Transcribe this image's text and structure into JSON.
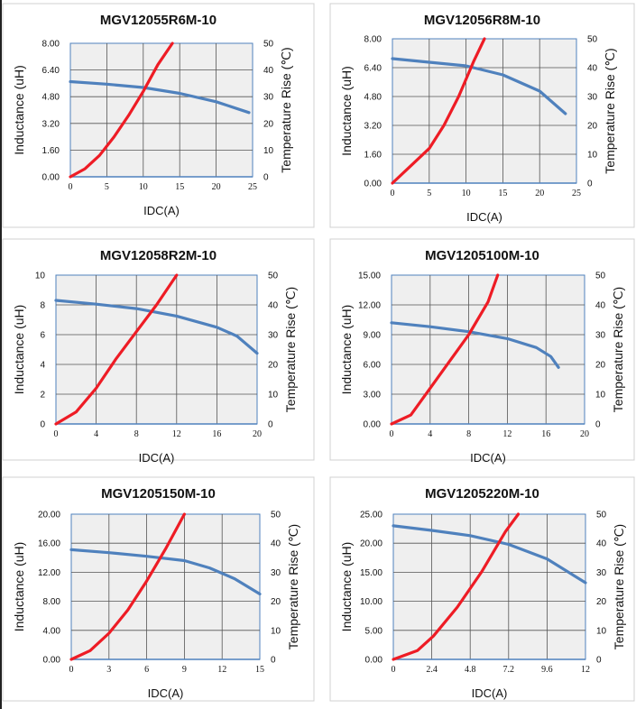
{
  "chart_data": [
    {
      "type": "line",
      "title": "MGV12055R6M-10",
      "xlabel": "IDC(A)",
      "ylabel": "Inductance (uH)",
      "y2label": "Temperature Rise (℃)",
      "xlim": [
        0,
        25
      ],
      "ylim": [
        0,
        8
      ],
      "y2lim": [
        0,
        50
      ],
      "xticks": [
        "0",
        "5",
        "10",
        "15",
        "20",
        "25"
      ],
      "yticks": [
        "0.00",
        "1.60",
        "3.20",
        "4.80",
        "6.40",
        "8.00"
      ],
      "y2ticks": [
        "0",
        "10",
        "20",
        "30",
        "40",
        "50"
      ],
      "grid": true,
      "series": [
        {
          "name": "Inductance",
          "axis": "left",
          "color": "#4f81bd",
          "x": [
            0,
            5,
            10,
            15,
            20,
            24.5
          ],
          "y": [
            5.7,
            5.55,
            5.35,
            5.0,
            4.5,
            3.85
          ]
        },
        {
          "name": "Temperature Rise",
          "axis": "right",
          "color": "#ee1c25",
          "x": [
            0,
            2,
            4,
            6,
            8,
            10,
            12,
            14
          ],
          "y": [
            0,
            3,
            8,
            15,
            23,
            32,
            42,
            50
          ]
        }
      ]
    },
    {
      "type": "line",
      "title": "MGV12056R8M-10",
      "xlabel": "IDC(A)",
      "ylabel": "Inductance (uH)",
      "y2label": "Temperature Rise (℃)",
      "xlim": [
        0,
        25
      ],
      "ylim": [
        0,
        8
      ],
      "y2lim": [
        0,
        50
      ],
      "xticks": [
        "0",
        "5",
        "10",
        "15",
        "20",
        "25"
      ],
      "yticks": [
        "0.00",
        "1.60",
        "3.20",
        "4.80",
        "6.40",
        "8.00"
      ],
      "y2ticks": [
        "0",
        "10",
        "20",
        "30",
        "40",
        "50"
      ],
      "grid": true,
      "series": [
        {
          "name": "Inductance",
          "axis": "left",
          "color": "#4f81bd",
          "x": [
            0,
            5,
            10,
            15,
            20,
            23.5
          ],
          "y": [
            6.9,
            6.7,
            6.5,
            6.0,
            5.1,
            3.85
          ]
        },
        {
          "name": "Temperature Rise",
          "axis": "right",
          "color": "#ee1c25",
          "x": [
            0,
            2.5,
            5,
            7,
            9,
            11,
            12.5
          ],
          "y": [
            0,
            6,
            12,
            20,
            30,
            42,
            50
          ]
        }
      ]
    },
    {
      "type": "line",
      "title": "MGV12058R2M-10",
      "xlabel": "IDC(A)",
      "ylabel": "Inductance (uH)",
      "y2label": "Temperature Rise (℃)",
      "xlim": [
        0,
        20
      ],
      "ylim": [
        0,
        10
      ],
      "y2lim": [
        0,
        50
      ],
      "xticks": [
        "0",
        "4",
        "8",
        "12",
        "16",
        "20"
      ],
      "yticks": [
        "0",
        "2",
        "4",
        "6",
        "8",
        "10"
      ],
      "y2ticks": [
        "0",
        "10",
        "20",
        "30",
        "40",
        "50"
      ],
      "grid": true,
      "series": [
        {
          "name": "Inductance",
          "axis": "left",
          "color": "#4f81bd",
          "x": [
            0,
            4,
            8,
            12,
            16,
            18,
            20
          ],
          "y": [
            8.3,
            8.05,
            7.75,
            7.25,
            6.5,
            5.9,
            4.75
          ]
        },
        {
          "name": "Temperature Rise",
          "axis": "right",
          "color": "#ee1c25",
          "x": [
            0,
            2,
            4,
            6,
            8,
            10,
            12
          ],
          "y": [
            0,
            4,
            12,
            22,
            31,
            40,
            50
          ]
        }
      ]
    },
    {
      "type": "line",
      "title": "MGV1205100M-10",
      "xlabel": "IDC(A)",
      "ylabel": "Inductance (uH)",
      "y2label": "Temperature Rise (℃)",
      "xlim": [
        0,
        20
      ],
      "ylim": [
        0,
        15
      ],
      "y2lim": [
        0,
        50
      ],
      "xticks": [
        "0",
        "4",
        "8",
        "12",
        "16",
        "20"
      ],
      "yticks": [
        "0.00",
        "3.00",
        "6.00",
        "9.00",
        "12.00",
        "15.00"
      ],
      "y2ticks": [
        "0",
        "10",
        "20",
        "30",
        "40",
        "50"
      ],
      "grid": true,
      "series": [
        {
          "name": "Inductance",
          "axis": "left",
          "color": "#4f81bd",
          "x": [
            0,
            4,
            8,
            12,
            15,
            16.5,
            17.3
          ],
          "y": [
            10.2,
            9.8,
            9.3,
            8.6,
            7.7,
            6.8,
            5.7
          ]
        },
        {
          "name": "Temperature Rise",
          "axis": "right",
          "color": "#ee1c25",
          "x": [
            0,
            2,
            4,
            6,
            8,
            10,
            11
          ],
          "y": [
            0,
            3,
            12,
            21,
            30,
            41,
            50
          ]
        }
      ]
    },
    {
      "type": "line",
      "title": "MGV1205150M-10",
      "xlabel": "IDC(A)",
      "ylabel": "Inductance (uH)",
      "y2label": "Temperature Rise (℃)",
      "xlim": [
        0,
        15
      ],
      "ylim": [
        0,
        20
      ],
      "y2lim": [
        0,
        50
      ],
      "xticks": [
        "0",
        "3",
        "6",
        "9",
        "12",
        "15"
      ],
      "yticks": [
        "0.00",
        "4.00",
        "8.00",
        "12.00",
        "16.00",
        "20.00"
      ],
      "y2ticks": [
        "0",
        "10",
        "20",
        "30",
        "40",
        "50"
      ],
      "grid": true,
      "series": [
        {
          "name": "Inductance",
          "axis": "left",
          "color": "#4f81bd",
          "x": [
            0,
            3,
            6,
            9,
            11,
            13,
            15
          ],
          "y": [
            15.1,
            14.7,
            14.2,
            13.6,
            12.6,
            11.1,
            9.0
          ]
        },
        {
          "name": "Temperature Rise",
          "axis": "right",
          "color": "#ee1c25",
          "x": [
            0,
            1.5,
            3,
            4.5,
            6,
            7.5,
            9
          ],
          "y": [
            0,
            3,
            9,
            17,
            27,
            38,
            50
          ]
        }
      ]
    },
    {
      "type": "line",
      "title": "MGV1205220M-10",
      "xlabel": "IDC(A)",
      "ylabel": "Inductance (uH)",
      "y2label": "Temperature Rise (℃)",
      "xlim": [
        0,
        12
      ],
      "ylim": [
        0,
        25
      ],
      "y2lim": [
        0,
        50
      ],
      "xticks": [
        "0",
        "2.4",
        "4.8",
        "7.2",
        "9.6",
        "12"
      ],
      "yticks": [
        "0.00",
        "5.00",
        "10.00",
        "15.00",
        "20.00",
        "25.00"
      ],
      "y2ticks": [
        "0",
        "10",
        "20",
        "30",
        "40",
        "50"
      ],
      "grid": true,
      "series": [
        {
          "name": "Inductance",
          "axis": "left",
          "color": "#4f81bd",
          "x": [
            0,
            2.4,
            4.8,
            7.2,
            9.6,
            12
          ],
          "y": [
            23.0,
            22.2,
            21.3,
            19.8,
            17.3,
            13.2
          ]
        },
        {
          "name": "Temperature Rise",
          "axis": "right",
          "color": "#ee1c25",
          "x": [
            0,
            1.5,
            2.5,
            4,
            5.5,
            7,
            7.8
          ],
          "y": [
            0,
            3,
            8,
            18,
            30,
            44,
            50
          ]
        }
      ]
    }
  ]
}
